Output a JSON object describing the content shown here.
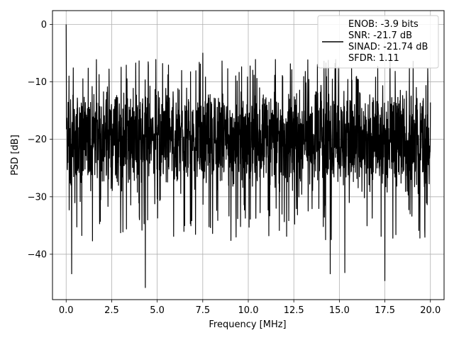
{
  "chart_data": {
    "type": "line",
    "title": "",
    "xlabel": "Frequency [MHz]",
    "ylabel": "PSD [dB]",
    "xlim": [
      -0.75,
      20.75
    ],
    "ylim": [
      -47.9,
      2.4
    ],
    "x_ticks": [
      0.0,
      2.5,
      5.0,
      7.5,
      10.0,
      12.5,
      15.0,
      17.5,
      20.0
    ],
    "x_tick_labels": [
      "0.0",
      "2.5",
      "5.0",
      "7.5",
      "10.0",
      "12.5",
      "15.0",
      "17.5",
      "20.0"
    ],
    "y_ticks": [
      0,
      -10,
      -20,
      -30,
      -40
    ],
    "y_tick_labels": [
      "0",
      "−10",
      "−20",
      "−30",
      "−40"
    ],
    "grid": true,
    "legend_position": "top-right",
    "series": [
      {
        "color": "#000000",
        "x_range": [
          0.0,
          20.0
        ],
        "num_points": 2048,
        "description_values": {
          "peak_at_dc": 0.0,
          "typical_upper_envelope": -10,
          "typical_lower_envelope": -30,
          "notable_minima": [
            {
              "x": 0.3,
              "y": -43.4
            },
            {
              "x": 4.35,
              "y": -45.8
            },
            {
              "x": 14.5,
              "y": -43.4
            },
            {
              "x": 15.3,
              "y": -43.2
            },
            {
              "x": 17.5,
              "y": -44.6
            }
          ],
          "notable_maxima": [
            {
              "x": 7.5,
              "y": -5.0
            },
            {
              "x": 10.4,
              "y": -6.1
            },
            {
              "x": 13.8,
              "y": -7.0
            }
          ]
        }
      }
    ],
    "legend": {
      "lines": [
        "ENOB: -3.9 bits",
        "SNR: -21.7 dB",
        "SINAD: -21.74 dB",
        "SFDR: 1.11"
      ],
      "line_color": "#000000"
    }
  }
}
